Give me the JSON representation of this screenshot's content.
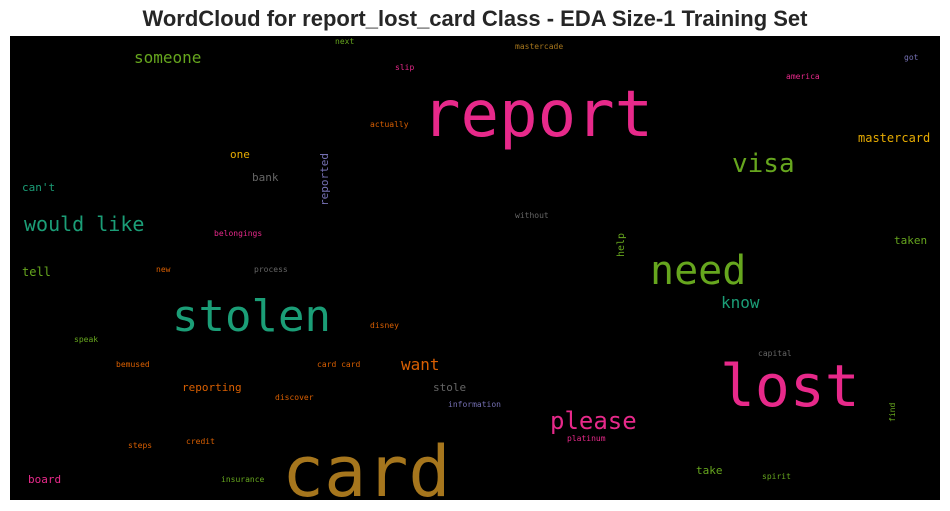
{
  "chart_data": {
    "type": "wordcloud",
    "title": "WordCloud for report_lost_card Class - EDA Size-1 Training Set",
    "background": "#000000",
    "words": [
      {
        "text": "report",
        "color": "#e7298a",
        "weight": 64
      },
      {
        "text": "card",
        "color": "#a6761d",
        "weight": 70
      },
      {
        "text": "lost",
        "color": "#e7298a",
        "weight": 58
      },
      {
        "text": "stolen",
        "color": "#1b9e77",
        "weight": 44
      },
      {
        "text": "need",
        "color": "#66a61e",
        "weight": 40
      },
      {
        "text": "visa",
        "color": "#66a61e",
        "weight": 26
      },
      {
        "text": "please",
        "color": "#e7298a",
        "weight": 24
      },
      {
        "text": "would like",
        "color": "#1b9e77",
        "weight": 20
      },
      {
        "text": "someone",
        "color": "#66a61e",
        "weight": 16
      },
      {
        "text": "know",
        "color": "#1b9e77",
        "weight": 16
      },
      {
        "text": "want",
        "color": "#d95f02",
        "weight": 16
      },
      {
        "text": "mastercard",
        "color": "#e6ab02",
        "weight": 12
      },
      {
        "text": "one",
        "color": "#e6ab02",
        "weight": 11
      },
      {
        "text": "can't",
        "color": "#1b9e77",
        "weight": 11
      },
      {
        "text": "bank",
        "color": "#666666",
        "weight": 11
      },
      {
        "text": "reported",
        "color": "#7570b3",
        "weight": 11,
        "vertical": true
      },
      {
        "text": "tell",
        "color": "#66a61e",
        "weight": 12
      },
      {
        "text": "taken",
        "color": "#66a61e",
        "weight": 11
      },
      {
        "text": "help",
        "color": "#66a61e",
        "weight": 10,
        "vertical": true
      },
      {
        "text": "reporting",
        "color": "#d95f02",
        "weight": 11
      },
      {
        "text": "stole",
        "color": "#666666",
        "weight": 11
      },
      {
        "text": "take",
        "color": "#66a61e",
        "weight": 11
      },
      {
        "text": "board",
        "color": "#e7298a",
        "weight": 11
      },
      {
        "text": "next",
        "color": "#66a61e",
        "weight": 8
      },
      {
        "text": "mastercade",
        "color": "#a6761d",
        "weight": 8
      },
      {
        "text": "got",
        "color": "#7570b3",
        "weight": 8
      },
      {
        "text": "slip",
        "color": "#e7298a",
        "weight": 8
      },
      {
        "text": "america",
        "color": "#e7298a",
        "weight": 8
      },
      {
        "text": "actually",
        "color": "#d95f02",
        "weight": 8
      },
      {
        "text": "without",
        "color": "#666666",
        "weight": 8
      },
      {
        "text": "belongings",
        "color": "#e7298a",
        "weight": 8
      },
      {
        "text": "new",
        "color": "#d95f02",
        "weight": 8
      },
      {
        "text": "process",
        "color": "#666666",
        "weight": 8
      },
      {
        "text": "disney",
        "color": "#d95f02",
        "weight": 8
      },
      {
        "text": "speak",
        "color": "#66a61e",
        "weight": 8
      },
      {
        "text": "bemused",
        "color": "#d95f02",
        "weight": 8
      },
      {
        "text": "card card",
        "color": "#d95f02",
        "weight": 8
      },
      {
        "text": "capital",
        "color": "#666666",
        "weight": 8
      },
      {
        "text": "discover",
        "color": "#d95f02",
        "weight": 8
      },
      {
        "text": "information",
        "color": "#7570b3",
        "weight": 8
      },
      {
        "text": "steps",
        "color": "#d95f02",
        "weight": 8
      },
      {
        "text": "credit",
        "color": "#d95f02",
        "weight": 8
      },
      {
        "text": "platinum",
        "color": "#e7298a",
        "weight": 8
      },
      {
        "text": "find",
        "color": "#66a61e",
        "weight": 8,
        "vertical": true
      },
      {
        "text": "insurance",
        "color": "#66a61e",
        "weight": 8
      },
      {
        "text": "spirit",
        "color": "#66a61e",
        "weight": 8
      }
    ]
  }
}
